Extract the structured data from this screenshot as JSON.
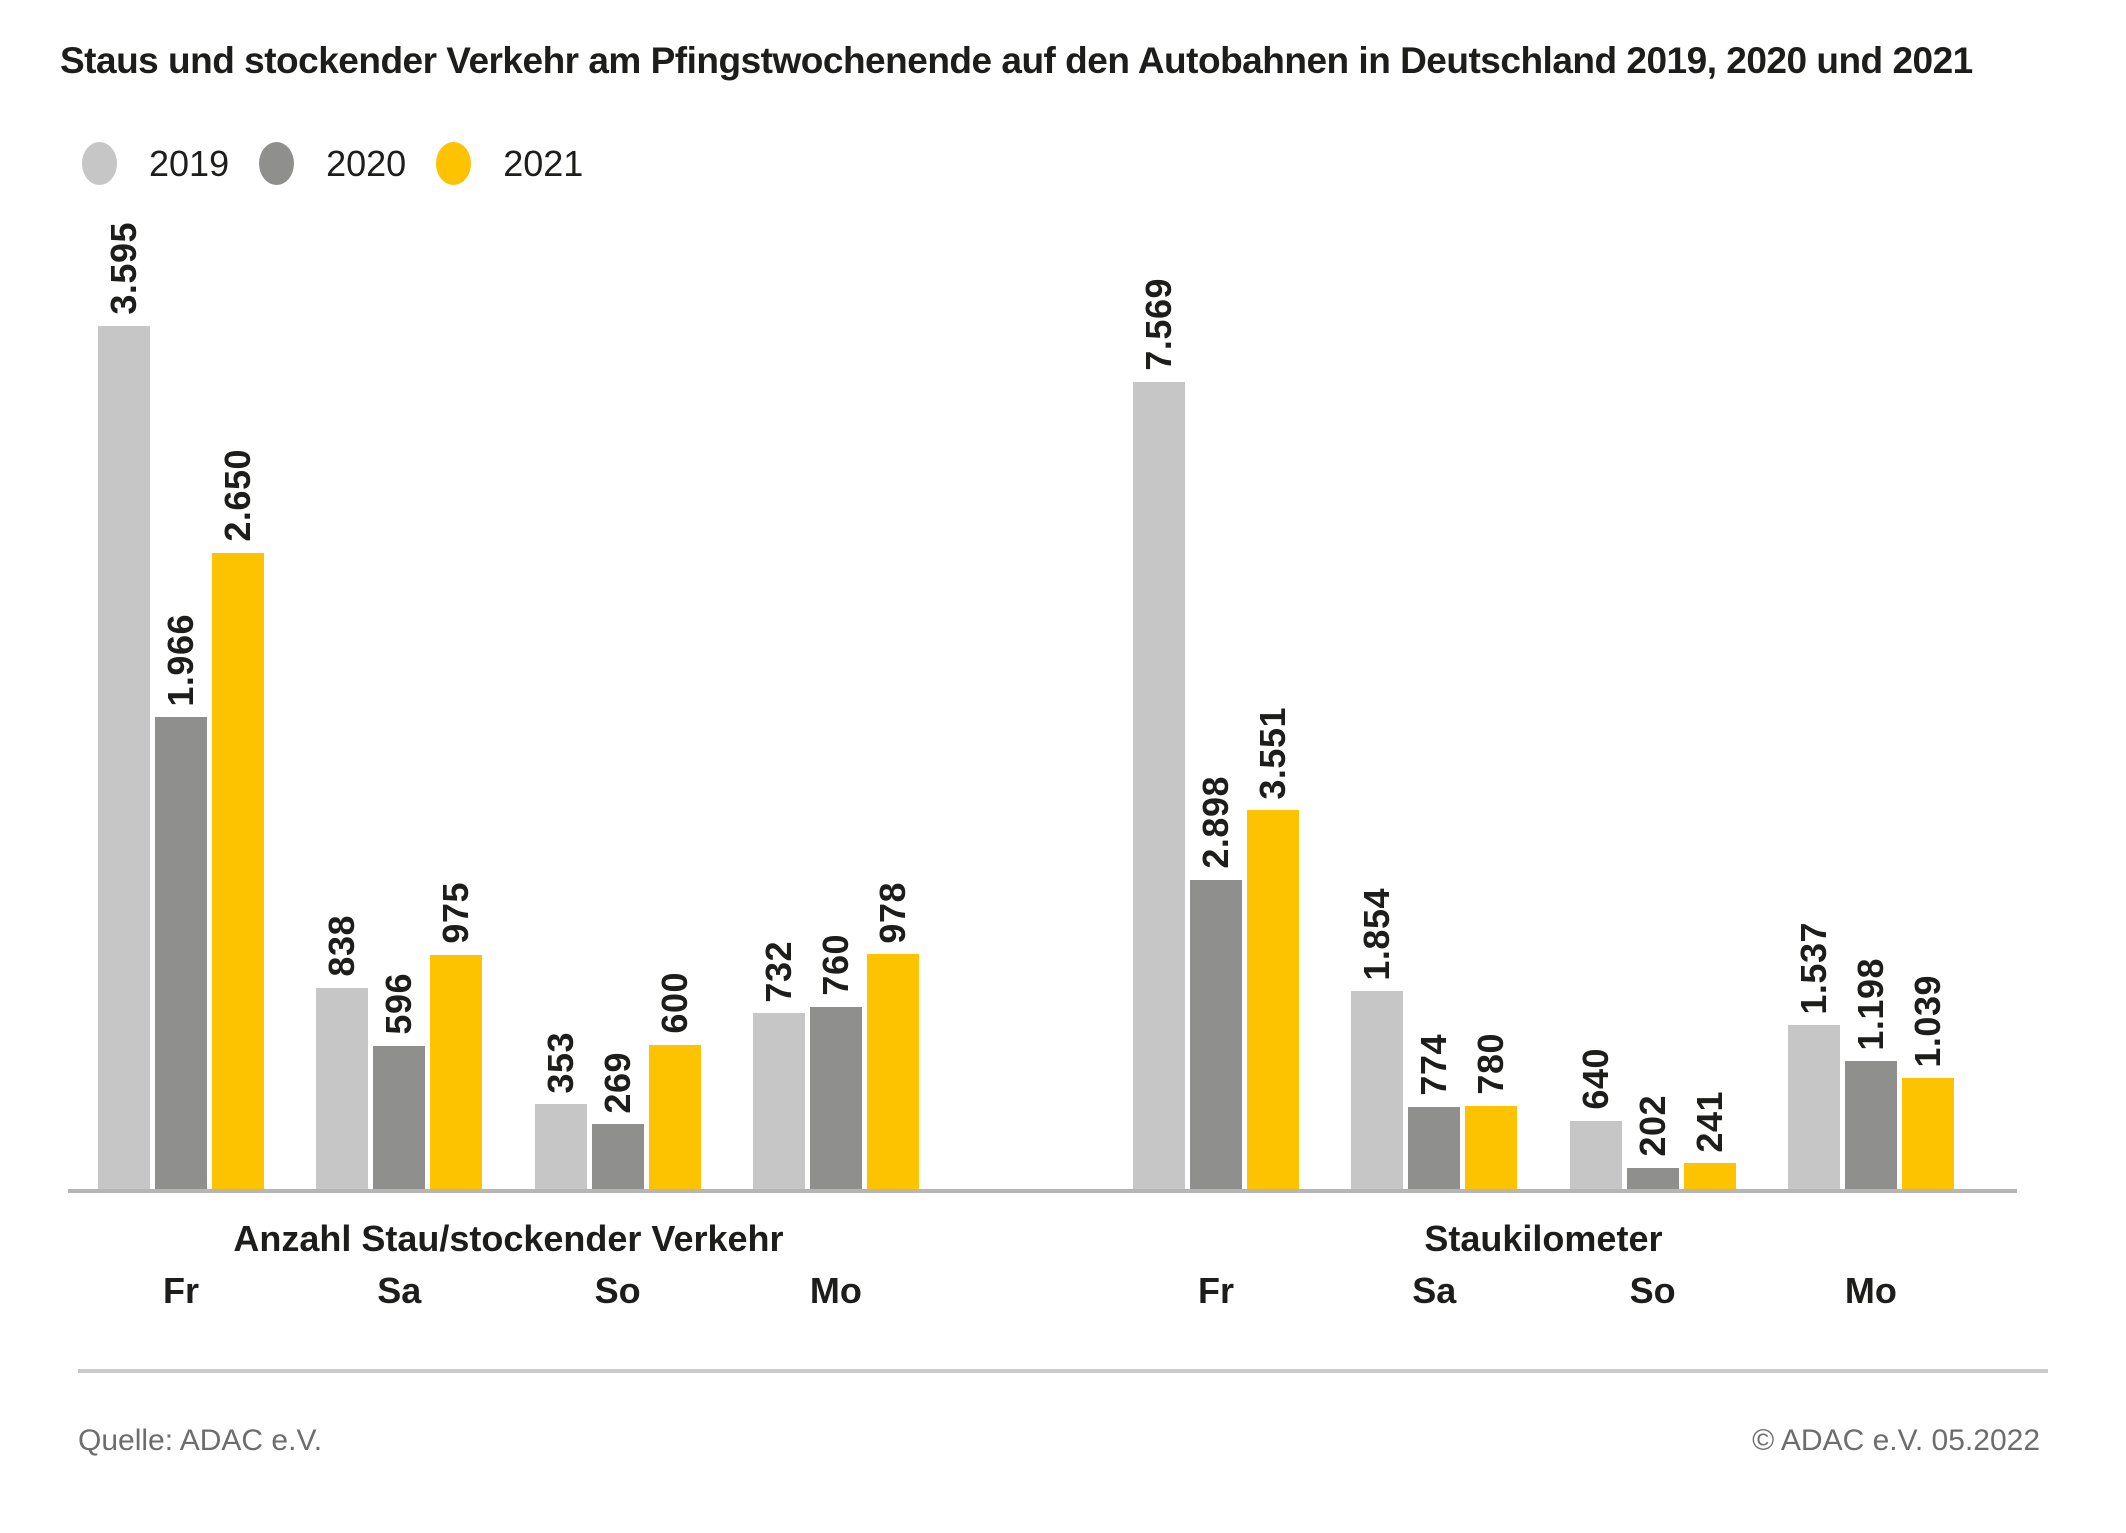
{
  "chart_data": {
    "type": "bar",
    "title": "Staus und stockender Verkehr am Pfingstwochenende auf den Autobahnen in Deutschland 2019, 2020 und 2021",
    "legend_position": "top-left",
    "value_label_rotation": -90,
    "grid": false,
    "legend": [
      {
        "name": "2019",
        "color": "#c6c6c6"
      },
      {
        "name": "2020",
        "color": "#8f8f8e"
      },
      {
        "name": "2021",
        "color": "#fdc300"
      }
    ],
    "panels": [
      {
        "title": "Anzahl Stau/stockender Verkehr",
        "categories": [
          "Fr",
          "Sa",
          "So",
          "Mo"
        ],
        "series": [
          {
            "name": "2019",
            "values": [
              3595,
              838,
              353,
              732
            ],
            "labels": [
              "3.595",
              "838",
              "353",
              "732"
            ]
          },
          {
            "name": "2020",
            "values": [
              1966,
              596,
              269,
              760
            ],
            "labels": [
              "1.966",
              "596",
              "269",
              "760"
            ]
          },
          {
            "name": "2021",
            "values": [
              2650,
              975,
              600,
              978
            ],
            "labels": [
              "2.650",
              "975",
              "600",
              "978"
            ]
          }
        ]
      },
      {
        "title": "Staukilometer",
        "categories": [
          "Fr",
          "Sa",
          "So",
          "Mo"
        ],
        "series": [
          {
            "name": "2019",
            "values": [
              7569,
              1854,
              640,
              1537
            ],
            "labels": [
              "7.569",
              "1.854",
              "640",
              "1.537"
            ]
          },
          {
            "name": "2020",
            "values": [
              2898,
              774,
              202,
              1198
            ],
            "labels": [
              "2.898",
              "774",
              "202",
              "1.198"
            ]
          },
          {
            "name": "2021",
            "values": [
              3551,
              780,
              241,
              1039
            ],
            "labels": [
              "3.551",
              "780",
              "241",
              "1.039"
            ]
          }
        ]
      }
    ]
  },
  "footer": {
    "source": "Quelle: ADAC e.V.",
    "copyright": "© ADAC e.V. 05.2022"
  }
}
